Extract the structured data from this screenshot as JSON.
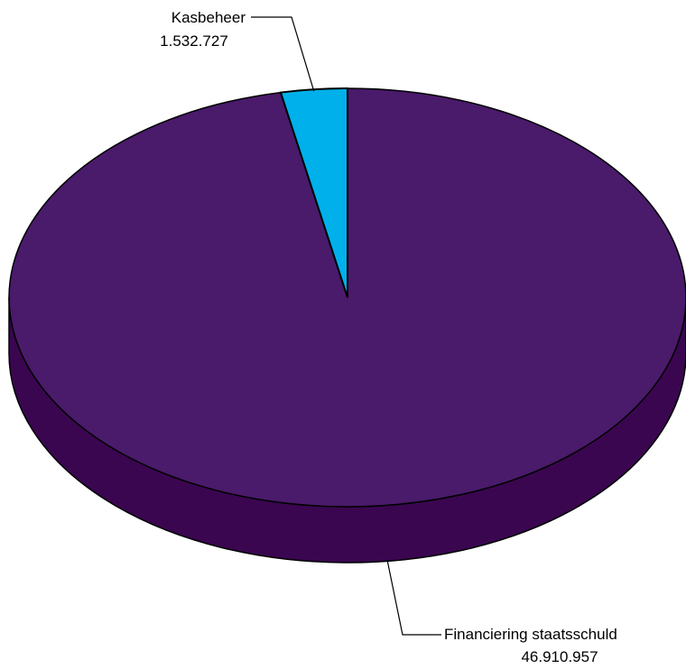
{
  "chart_data": {
    "type": "pie",
    "style": "3d",
    "slices": [
      {
        "label": "Financiering staatsschuld",
        "value": 46910957,
        "value_text": "46.910.957",
        "color": "#4a1a6b",
        "side_color": "#3a0650"
      },
      {
        "label": "Kasbeheer",
        "value": 1532727,
        "value_text": "1.532.727",
        "color": "#00b0ea",
        "side_color": "#0090c0"
      }
    ],
    "legend": "none"
  }
}
